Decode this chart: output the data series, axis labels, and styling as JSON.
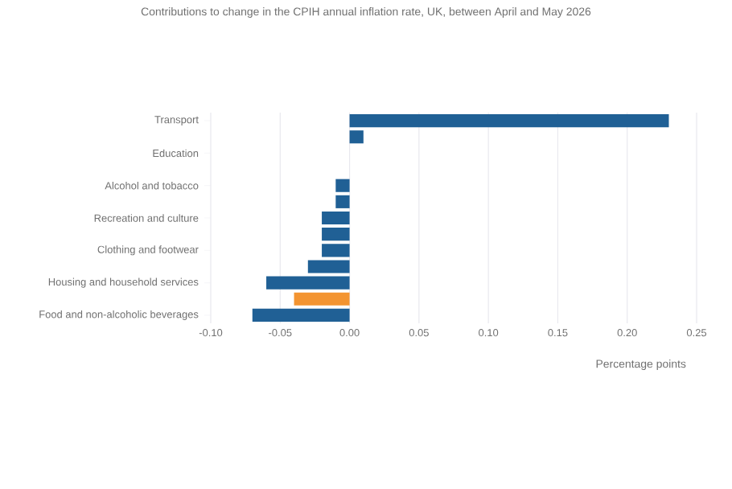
{
  "chart_data": {
    "type": "bar",
    "orientation": "horizontal",
    "title": "Contributions to change in the CPIH annual inflation rate, UK, between April and May 2026",
    "xlabel": "Percentage points",
    "categories": [
      "Transport",
      null,
      "Education",
      null,
      "Alcohol and tobacco",
      null,
      "Recreation and culture",
      null,
      "Clothing and footwear",
      null,
      "Housing and household services",
      null,
      "Food and non-alcoholic beverages"
    ],
    "values": [
      0.23,
      0.01,
      0,
      0,
      -0.01,
      -0.01,
      -0.02,
      -0.02,
      -0.02,
      -0.03,
      -0.06,
      -0.04,
      -0.07
    ],
    "colors": [
      "#206095",
      "#206095",
      "#206095",
      "#206095",
      "#206095",
      "#206095",
      "#206095",
      "#206095",
      "#206095",
      "#206095",
      "#206095",
      "#f39431",
      "#206095"
    ],
    "xlim": [
      -0.1,
      0.25
    ],
    "xticks": [
      {
        "value": -0.1,
        "label": "-0.10"
      },
      {
        "value": -0.05,
        "label": "-0.05"
      },
      {
        "value": 0,
        "label": "0.00"
      },
      {
        "value": 0.05,
        "label": "0.05"
      },
      {
        "value": 0.1,
        "label": "0.10"
      },
      {
        "value": 0.15,
        "label": "0.15"
      },
      {
        "value": 0.2,
        "label": "0.20"
      },
      {
        "value": 0.25,
        "label": "0.25"
      }
    ],
    "grid": "x"
  }
}
